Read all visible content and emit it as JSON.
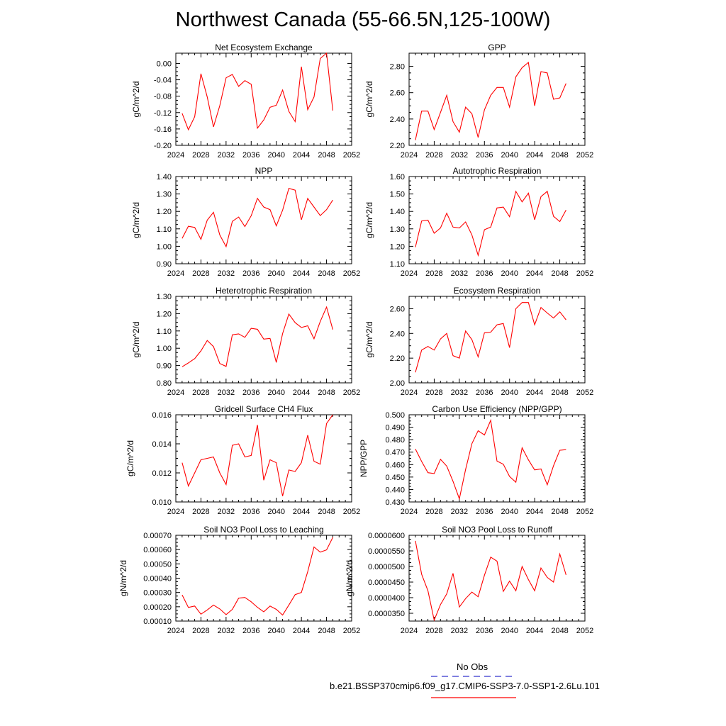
{
  "page_title": "Northwest Canada (55-66.5N,125-100W)",
  "colors": {
    "model": "#ff0000",
    "obs": "#3333cc",
    "axis": "#000000"
  },
  "legend": {
    "obs_label": "No Obs",
    "model_label": "b.e21.BSSP370cmip6.f09_g17.CMIP6-SSP3-7.0-SSP1-2.6Lu.101"
  },
  "chart_data": [
    {
      "type": "line",
      "title": "Net Ecosystem Exchange",
      "ylabel": "gC/m^2/d",
      "xlim": [
        2024,
        2052
      ],
      "xticks": [
        2024,
        2028,
        2032,
        2036,
        2040,
        2044,
        2048,
        2052
      ],
      "ylim": [
        -0.2,
        0.025
      ],
      "yticks": [
        "-0.20",
        "-0.16",
        "-0.12",
        "-0.08",
        "-0.04",
        "0.00"
      ],
      "series": [
        {
          "x_start": 2025,
          "values": [
            -0.122,
            -0.162,
            -0.13,
            -0.025,
            -0.082,
            -0.155,
            -0.103,
            -0.035,
            -0.027,
            -0.056,
            -0.042,
            -0.051,
            -0.158,
            -0.138,
            -0.107,
            -0.102,
            -0.065,
            -0.117,
            -0.142,
            -0.008,
            -0.113,
            -0.082,
            0.012,
            0.025,
            -0.115
          ]
        }
      ]
    },
    {
      "type": "line",
      "title": "GPP",
      "ylabel": "gC/m^2/d",
      "xlim": [
        2024,
        2052
      ],
      "xticks": [
        2024,
        2028,
        2032,
        2036,
        2040,
        2044,
        2048,
        2052
      ],
      "ylim": [
        2.2,
        2.9
      ],
      "yticks": [
        "2.20",
        "2.40",
        "2.60",
        "2.80"
      ],
      "series": [
        {
          "x_start": 2025,
          "values": [
            2.24,
            2.46,
            2.46,
            2.32,
            2.45,
            2.58,
            2.38,
            2.3,
            2.49,
            2.44,
            2.26,
            2.47,
            2.58,
            2.64,
            2.64,
            2.49,
            2.72,
            2.79,
            2.83,
            2.5,
            2.76,
            2.75,
            2.55,
            2.56,
            2.67
          ]
        }
      ]
    },
    {
      "type": "line",
      "title": "NPP",
      "ylabel": "gC/m^2/d",
      "xlim": [
        2024,
        2052
      ],
      "xticks": [
        2024,
        2028,
        2032,
        2036,
        2040,
        2044,
        2048,
        2052
      ],
      "ylim": [
        0.9,
        1.4
      ],
      "yticks": [
        "0.90",
        "1.00",
        "1.10",
        "1.20",
        "1.30",
        "1.40"
      ],
      "series": [
        {
          "x_start": 2025,
          "values": [
            1.045,
            1.115,
            1.108,
            1.04,
            1.15,
            1.195,
            1.065,
            0.998,
            1.143,
            1.168,
            1.113,
            1.175,
            1.275,
            1.225,
            1.21,
            1.117,
            1.207,
            1.332,
            1.322,
            1.152,
            1.275,
            1.225,
            1.176,
            1.21,
            1.265
          ]
        }
      ]
    },
    {
      "type": "line",
      "title": "Autotrophic Respiration",
      "ylabel": "gC/m^2/d",
      "xlim": [
        2024,
        2052
      ],
      "xticks": [
        2024,
        2028,
        2032,
        2036,
        2040,
        2044,
        2048,
        2052
      ],
      "ylim": [
        1.1,
        1.6
      ],
      "yticks": [
        "1.10",
        "1.20",
        "1.30",
        "1.40",
        "1.50",
        "1.60"
      ],
      "series": [
        {
          "x_start": 2025,
          "values": [
            1.195,
            1.345,
            1.35,
            1.275,
            1.305,
            1.39,
            1.31,
            1.305,
            1.34,
            1.265,
            1.148,
            1.295,
            1.31,
            1.42,
            1.425,
            1.37,
            1.515,
            1.455,
            1.505,
            1.352,
            1.485,
            1.515,
            1.372,
            1.342,
            1.408
          ]
        }
      ]
    },
    {
      "type": "line",
      "title": "Heterotrophic Respiration",
      "ylabel": "gC/m^2/d",
      "xlim": [
        2024,
        2052
      ],
      "xticks": [
        2024,
        2028,
        2032,
        2036,
        2040,
        2044,
        2048,
        2052
      ],
      "ylim": [
        0.8,
        1.3
      ],
      "yticks": [
        "0.80",
        "0.90",
        "1.00",
        "1.10",
        "1.20",
        "1.30"
      ],
      "series": [
        {
          "x_start": 2025,
          "values": [
            0.893,
            0.915,
            0.94,
            0.985,
            1.045,
            1.01,
            0.912,
            0.895,
            1.078,
            1.083,
            1.063,
            1.115,
            1.11,
            1.053,
            1.057,
            0.918,
            1.085,
            1.198,
            1.148,
            1.12,
            1.13,
            1.055,
            1.155,
            1.238,
            1.108
          ]
        }
      ]
    },
    {
      "type": "line",
      "title": "Ecosystem Respiration",
      "ylabel": "gC/m^2/d",
      "xlim": [
        2024,
        2052
      ],
      "xticks": [
        2024,
        2028,
        2032,
        2036,
        2040,
        2044,
        2048,
        2052
      ],
      "ylim": [
        2.0,
        2.7
      ],
      "yticks": [
        "2.00",
        "2.20",
        "2.40",
        "2.60"
      ],
      "series": [
        {
          "x_start": 2025,
          "values": [
            2.085,
            2.265,
            2.295,
            2.265,
            2.355,
            2.4,
            2.22,
            2.2,
            2.42,
            2.35,
            2.21,
            2.405,
            2.41,
            2.47,
            2.48,
            2.285,
            2.6,
            2.65,
            2.65,
            2.47,
            2.61,
            2.565,
            2.525,
            2.575,
            2.51
          ]
        }
      ]
    },
    {
      "type": "line",
      "title": "Gridcell Surface CH4 Flux",
      "ylabel": "gC/m^2/d",
      "xlim": [
        2024,
        2052
      ],
      "xticks": [
        2024,
        2028,
        2032,
        2036,
        2040,
        2044,
        2048,
        2052
      ],
      "ylim": [
        0.01,
        0.016
      ],
      "yticks": [
        "0.010",
        "0.012",
        "0.014",
        "0.016"
      ],
      "series": [
        {
          "x_start": 2025,
          "values": [
            0.0127,
            0.0111,
            0.012,
            0.0129,
            0.013,
            0.0131,
            0.012,
            0.0112,
            0.0139,
            0.014,
            0.0131,
            0.0132,
            0.0153,
            0.0115,
            0.0129,
            0.0127,
            0.0104,
            0.0122,
            0.0121,
            0.0127,
            0.0146,
            0.0128,
            0.0126,
            0.0154,
            0.016
          ]
        }
      ]
    },
    {
      "type": "line",
      "title": "Carbon Use Efficiency (NPP/GPP)",
      "ylabel": "NPP/GPP",
      "xlim": [
        2024,
        2052
      ],
      "xticks": [
        2024,
        2028,
        2032,
        2036,
        2040,
        2044,
        2048,
        2052
      ],
      "ylim": [
        0.43,
        0.5
      ],
      "yticks": [
        "0.430",
        "0.440",
        "0.450",
        "0.460",
        "0.470",
        "0.480",
        "0.490",
        "0.500"
      ],
      "series": [
        {
          "x_start": 2025,
          "values": [
            0.4725,
            0.4625,
            0.4535,
            0.4528,
            0.4642,
            0.4588,
            0.4465,
            0.4325,
            0.456,
            0.4768,
            0.4872,
            0.4838,
            0.4955,
            0.4628,
            0.4603,
            0.4505,
            0.4458,
            0.4735,
            0.4638,
            0.4557,
            0.4565,
            0.4438,
            0.459,
            0.4715,
            0.472
          ]
        }
      ]
    },
    {
      "type": "line",
      "title": "Soil NO3 Pool Loss to Leaching",
      "ylabel": "gN/m^2/d",
      "xlim": [
        2024,
        2052
      ],
      "xticks": [
        2024,
        2028,
        2032,
        2036,
        2040,
        2044,
        2048,
        2052
      ],
      "ylim": [
        0.0001,
        0.0007
      ],
      "yticks": [
        "0.00010",
        "0.00020",
        "0.00030",
        "0.00040",
        "0.00050",
        "0.00060",
        "0.00070"
      ],
      "series": [
        {
          "x_start": 2025,
          "values": [
            0.000283,
            0.000195,
            0.000205,
            0.000148,
            0.000178,
            0.000212,
            0.000185,
            0.000145,
            0.000182,
            0.00026,
            0.000265,
            0.000235,
            0.000196,
            0.000165,
            0.000205,
            0.000182,
            0.000142,
            0.000212,
            0.000285,
            0.0003,
            0.000445,
            0.000618,
            0.000582,
            0.000598,
            0.000685
          ]
        }
      ]
    },
    {
      "type": "line",
      "title": "Soil NO3 Pool Loss to Runoff",
      "ylabel": "gN/m^2/d",
      "xlim": [
        2024,
        2052
      ],
      "xticks": [
        2024,
        2028,
        2032,
        2036,
        2040,
        2044,
        2048,
        2052
      ],
      "ylim": [
        3.25e-05,
        6e-05
      ],
      "yticks": [
        "0.0000350",
        "0.0000400",
        "0.0000450",
        "0.0000500",
        "0.0000550",
        "0.0000600"
      ],
      "series": [
        {
          "x_start": 2025,
          "values": [
            5.82e-05,
            4.75e-05,
            4.22e-05,
            3.28e-05,
            3.78e-05,
            4.12e-05,
            4.78e-05,
            3.7e-05,
            3.97e-05,
            4.18e-05,
            4.03e-05,
            4.72e-05,
            5.3e-05,
            5.17e-05,
            4.2e-05,
            4.53e-05,
            4.22e-05,
            5e-05,
            4.58e-05,
            4.22e-05,
            4.95e-05,
            4.65e-05,
            4.5e-05,
            5.4e-05,
            4.73e-05
          ]
        }
      ]
    }
  ]
}
